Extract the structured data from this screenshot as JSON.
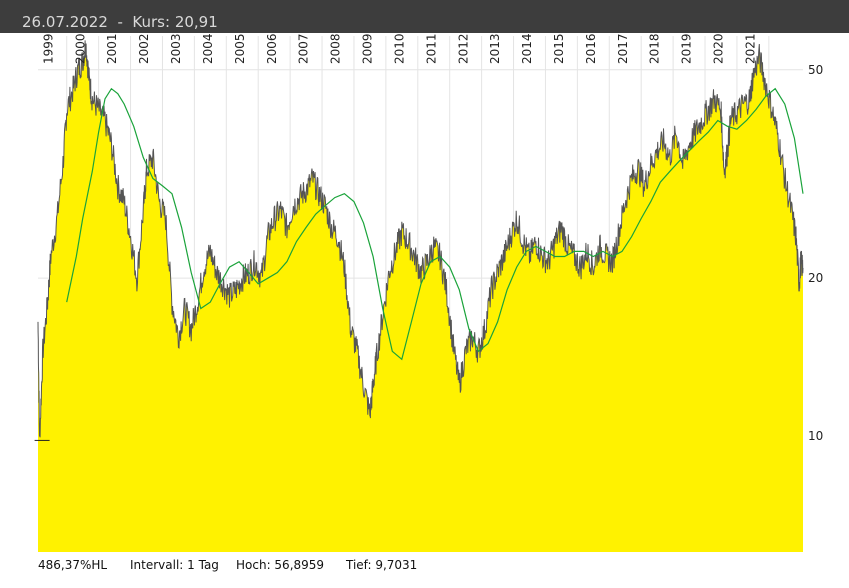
{
  "header": {
    "date": "26.07.2022",
    "separator": "-",
    "price_label": "Kurs:",
    "price": "20,91"
  },
  "footer": {
    "hl_range": "486,37%HL",
    "interval": "Intervall: 1 Tag",
    "high": "Hoch: 56,8959",
    "low": "Tief: 9,7031"
  },
  "colors": {
    "fill": "#fff200",
    "price_line": "#555555",
    "moving_average": "#1aa33a",
    "grid": "#e4e4e4",
    "header_bg": "#3d3d3d"
  },
  "chart_data": {
    "type": "area",
    "scale": "log",
    "ylim": [
      6.0,
      58.0
    ],
    "xlim": [
      1998.6,
      2022.57
    ],
    "grid": true,
    "y_ticks": [
      "50",
      "20",
      "10"
    ],
    "y_tick_values": [
      50,
      20,
      10
    ],
    "year_labels": [
      "1999",
      "2000",
      "2001",
      "2002",
      "2003",
      "2004",
      "2005",
      "2006",
      "2007",
      "2008",
      "2009",
      "2010",
      "2011",
      "2012",
      "2013",
      "2014",
      "2015",
      "2016",
      "2017",
      "2018",
      "2019",
      "2020",
      "2021"
    ],
    "series": [
      {
        "type": "area",
        "x": [
          1998.6,
          1998.65,
          1998.75,
          1998.9,
          1999.0,
          1999.2,
          1999.4,
          1999.5,
          1999.7,
          1999.85,
          2000.0,
          2000.1,
          2000.2,
          2000.3,
          2000.5,
          2000.7,
          2000.9,
          2001.1,
          2001.3,
          2001.5,
          2001.7,
          2001.9,
          2002.0,
          2002.2,
          2002.4,
          2002.6,
          2002.8,
          2003.0,
          2003.2,
          2003.4,
          2003.6,
          2003.8,
          2004.0,
          2004.2,
          2004.4,
          2004.6,
          2004.8,
          2005.0,
          2005.2,
          2005.4,
          2005.6,
          2005.8,
          2006.0,
          2006.2,
          2006.4,
          2006.6,
          2006.8,
          2007.0,
          2007.2,
          2007.4,
          2007.6,
          2007.8,
          2008.0,
          2008.2,
          2008.4,
          2008.6,
          2008.8,
          2009.0,
          2009.1,
          2009.2,
          2009.4,
          2009.6,
          2009.8,
          2010.0,
          2010.2,
          2010.4,
          2010.6,
          2010.8,
          2011.0,
          2011.2,
          2011.4,
          2011.6,
          2011.8,
          2012.0,
          2012.2,
          2012.4,
          2012.6,
          2012.8,
          2013.0,
          2013.2,
          2013.4,
          2013.6,
          2013.8,
          2014.0,
          2014.2,
          2014.4,
          2014.6,
          2014.8,
          2015.0,
          2015.2,
          2015.4,
          2015.6,
          2015.8,
          2016.0,
          2016.2,
          2016.4,
          2016.6,
          2016.8,
          2017.0,
          2017.2,
          2017.4,
          2017.6,
          2017.8,
          2018.0,
          2018.2,
          2018.4,
          2018.6,
          2018.8,
          2019.0,
          2019.2,
          2019.4,
          2019.6,
          2019.8,
          2020.0,
          2020.1,
          2020.2,
          2020.3,
          2020.5,
          2020.7,
          2020.9,
          2021.0,
          2021.2,
          2021.4,
          2021.6,
          2021.8,
          2022.0,
          2022.2,
          2022.35,
          2022.45,
          2022.5,
          2022.57
        ],
        "values": [
          16.5,
          9.8,
          14.5,
          18.0,
          22.0,
          26.0,
          34.0,
          42.0,
          46.0,
          50.0,
          52.0,
          56.0,
          48.0,
          44.0,
          42.0,
          40.0,
          36.0,
          30.0,
          28.0,
          24.0,
          20.0,
          27.0,
          32.0,
          34.0,
          28.0,
          26.0,
          18.0,
          15.5,
          17.5,
          16.0,
          18.0,
          21.0,
          22.5,
          20.5,
          19.5,
          18.5,
          19.0,
          20.0,
          20.5,
          21.5,
          20.0,
          24.0,
          26.0,
          27.0,
          25.0,
          27.5,
          28.5,
          29.5,
          31.0,
          29.0,
          27.5,
          25.0,
          24.0,
          21.0,
          16.0,
          14.5,
          12.5,
          11.0,
          12.5,
          14.0,
          17.0,
          20.5,
          22.5,
          24.5,
          23.5,
          22.0,
          20.5,
          21.5,
          23.0,
          22.0,
          19.0,
          15.0,
          12.5,
          14.5,
          15.5,
          14.5,
          16.0,
          19.0,
          20.5,
          22.0,
          24.0,
          26.0,
          23.5,
          22.0,
          23.5,
          22.0,
          21.5,
          23.5,
          25.0,
          23.0,
          22.0,
          21.0,
          22.5,
          21.0,
          23.0,
          22.0,
          21.5,
          24.5,
          28.0,
          31.0,
          32.5,
          30.0,
          33.0,
          35.0,
          36.5,
          34.0,
          38.0,
          33.0,
          36.0,
          38.0,
          40.0,
          42.0,
          44.0,
          42.0,
          32.0,
          35.0,
          40.0,
          41.5,
          43.0,
          44.0,
          48.5,
          53.0,
          47.0,
          42.0,
          37.0,
          31.0,
          27.0,
          24.0,
          19.5,
          21.5,
          20.91
        ]
      },
      {
        "type": "line",
        "name": "",
        "x": [
          1999.5,
          1999.8,
          2000.0,
          2000.3,
          2000.5,
          2000.7,
          2000.9,
          2001.1,
          2001.3,
          2001.6,
          2001.9,
          2002.2,
          2002.5,
          2002.8,
          2003.1,
          2003.4,
          2003.7,
          2004.0,
          2004.3,
          2004.6,
          2004.9,
          2005.2,
          2005.5,
          2005.8,
          2006.1,
          2006.4,
          2006.7,
          2007.0,
          2007.3,
          2007.6,
          2007.9,
          2008.2,
          2008.5,
          2008.8,
          2009.1,
          2009.4,
          2009.7,
          2010.0,
          2010.3,
          2010.6,
          2010.9,
          2011.2,
          2011.5,
          2011.8,
          2012.1,
          2012.4,
          2012.7,
          2013.0,
          2013.3,
          2013.6,
          2013.9,
          2014.2,
          2014.5,
          2014.8,
          2015.1,
          2015.4,
          2015.7,
          2016.0,
          2016.3,
          2016.6,
          2016.9,
          2017.2,
          2017.5,
          2017.8,
          2018.1,
          2018.4,
          2018.7,
          2019.0,
          2019.3,
          2019.6,
          2019.9,
          2020.2,
          2020.5,
          2020.8,
          2021.1,
          2021.4,
          2021.7,
          2022.0,
          2022.3,
          2022.57
        ],
        "values": [
          18.0,
          22.0,
          26.0,
          32.0,
          38.0,
          44.0,
          46.0,
          45.0,
          43.0,
          39.0,
          34.0,
          31.0,
          30.0,
          29.0,
          25.0,
          20.5,
          17.5,
          18.0,
          19.5,
          21.0,
          21.5,
          20.5,
          19.5,
          20.0,
          20.5,
          21.5,
          23.5,
          25.0,
          26.5,
          27.5,
          28.5,
          29.0,
          28.0,
          25.5,
          22.0,
          17.5,
          14.5,
          14.0,
          16.5,
          19.5,
          21.5,
          22.0,
          21.0,
          19.0,
          16.0,
          14.5,
          15.0,
          16.5,
          19.0,
          21.0,
          22.5,
          23.0,
          22.5,
          22.0,
          22.0,
          22.5,
          22.5,
          22.0,
          22.5,
          22.0,
          22.5,
          24.0,
          26.0,
          28.0,
          30.5,
          32.0,
          33.5,
          35.0,
          36.5,
          38.0,
          40.0,
          39.0,
          38.5,
          40.0,
          42.0,
          44.5,
          46.0,
          43.0,
          37.0,
          29.0
        ]
      }
    ]
  }
}
